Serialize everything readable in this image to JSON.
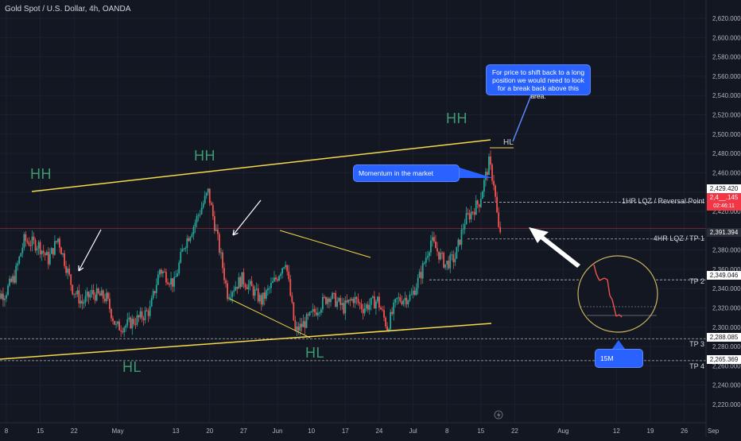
{
  "symbol_title": "Gold Spot / U.S. Dollar, 4h, OANDA",
  "chart_data": {
    "type": "candlestick",
    "title": "Gold Spot / U.S. Dollar, 4h, OANDA",
    "ylim": [
      2207,
      2640
    ],
    "y_ticks": [
      2220,
      2240,
      2260,
      2280,
      2300,
      2320,
      2340,
      2360,
      2380,
      2400,
      2420,
      2440,
      2460,
      2480,
      2500,
      2520,
      2540,
      2560,
      2580,
      2600,
      2620
    ],
    "y_tick_labels": [
      "2,220.000",
      "2,240.000",
      "2,260.000",
      "2,280.000",
      "2,300.000",
      "2,320.000",
      "2,340.000",
      "2,360.000",
      "2,380.000",
      "2,400.000",
      "2,420.000",
      "2,440.000",
      "2,460.000",
      "2,480.000",
      "2,500.000",
      "2,520.000",
      "2,540.000",
      "2,560.000",
      "2,580.000",
      "2,600.000",
      "2,620.000"
    ],
    "x_ticks": [
      "8",
      "15",
      "22",
      "May",
      "13",
      "20",
      "27",
      "Jun",
      "10",
      "17",
      "24",
      "Jul",
      "8",
      "15",
      "22",
      "Aug",
      "12",
      "19",
      "26",
      "Sep"
    ],
    "x_tick_dates": [
      "2024-04-08",
      "2024-04-15",
      "2024-04-22",
      "2024-05-01",
      "2024-05-13",
      "2024-05-20",
      "2024-05-27",
      "2024-06-03",
      "2024-06-10",
      "2024-06-17",
      "2024-06-24",
      "2024-07-01",
      "2024-07-08",
      "2024-07-15",
      "2024-07-22",
      "2024-08-01",
      "2024-08-12",
      "2024-08-19",
      "2024-08-26",
      "2024-09-01"
    ],
    "price_path": [
      [
        "2024-04-05",
        2330
      ],
      [
        "2024-04-08",
        2335
      ],
      [
        "2024-04-10",
        2352
      ],
      [
        "2024-04-12",
        2390
      ],
      [
        "2024-04-15",
        2385
      ],
      [
        "2024-04-17",
        2370
      ],
      [
        "2024-04-19",
        2392
      ],
      [
        "2024-04-22",
        2340
      ],
      [
        "2024-04-24",
        2325
      ],
      [
        "2024-04-26",
        2335
      ],
      [
        "2024-04-29",
        2330
      ],
      [
        "2024-05-01",
        2300
      ],
      [
        "2024-05-03",
        2302
      ],
      [
        "2024-05-06",
        2310
      ],
      [
        "2024-05-08",
        2318
      ],
      [
        "2024-05-10",
        2360
      ],
      [
        "2024-05-13",
        2345
      ],
      [
        "2024-05-15",
        2385
      ],
      [
        "2024-05-17",
        2405
      ],
      [
        "2024-05-20",
        2440
      ],
      [
        "2024-05-22",
        2390
      ],
      [
        "2024-05-24",
        2335
      ],
      [
        "2024-05-27",
        2350
      ],
      [
        "2024-05-29",
        2340
      ],
      [
        "2024-05-31",
        2327
      ],
      [
        "2024-06-03",
        2350
      ],
      [
        "2024-06-05",
        2370
      ],
      [
        "2024-06-07",
        2295
      ],
      [
        "2024-06-10",
        2310
      ],
      [
        "2024-06-12",
        2322
      ],
      [
        "2024-06-14",
        2333
      ],
      [
        "2024-06-17",
        2320
      ],
      [
        "2024-06-19",
        2330
      ],
      [
        "2024-06-21",
        2320
      ],
      [
        "2024-06-24",
        2328
      ],
      [
        "2024-06-26",
        2300
      ],
      [
        "2024-06-28",
        2328
      ],
      [
        "2024-07-01",
        2332
      ],
      [
        "2024-07-03",
        2356
      ],
      [
        "2024-07-05",
        2390
      ],
      [
        "2024-07-08",
        2365
      ],
      [
        "2024-07-10",
        2372
      ],
      [
        "2024-07-12",
        2410
      ],
      [
        "2024-07-15",
        2430
      ],
      [
        "2024-07-17",
        2470
      ],
      [
        "2024-07-18",
        2450
      ],
      [
        "2024-07-19",
        2400
      ]
    ],
    "y_tag_values": [
      2429.42,
      2391.394,
      2349.046,
      2288.085,
      2265.369
    ],
    "y_tag_labels": [
      "2,429.420",
      "2,391.394",
      "2,349.046",
      "2,288.085",
      "2,265.369"
    ],
    "current_price_label": "2,4__.145",
    "current_price_sublabel": "02:46:11",
    "current_price": 2400,
    "levels": [
      {
        "label": "1HR LQZ / Reversal Point",
        "price": 2429.42
      },
      {
        "label": "4HR LQZ / TP 1",
        "price": 2391.394
      },
      {
        "label": "TP 2",
        "price": 2349.046
      },
      {
        "label": "TP 3",
        "price": 2288.085
      },
      {
        "label": "TP 4",
        "price": 2265.369
      }
    ]
  },
  "annotations": {
    "hh_label": "HH",
    "hl_label": "HL",
    "small_hl": "HL",
    "callout_top": "For price to shift back to a long position we would need to look for a break back above this area.",
    "callout_momentum": "Momentum in the market",
    "callout_15m": "15M"
  },
  "colors": {
    "background": "#131722",
    "up": "#26a69a",
    "down": "#ef5350",
    "trendline": "#f7d84a",
    "callout": "#2962ff",
    "label_green": "#3d9970",
    "current_price": "#f23645"
  },
  "icons": {
    "bolt": "lightning-icon"
  }
}
